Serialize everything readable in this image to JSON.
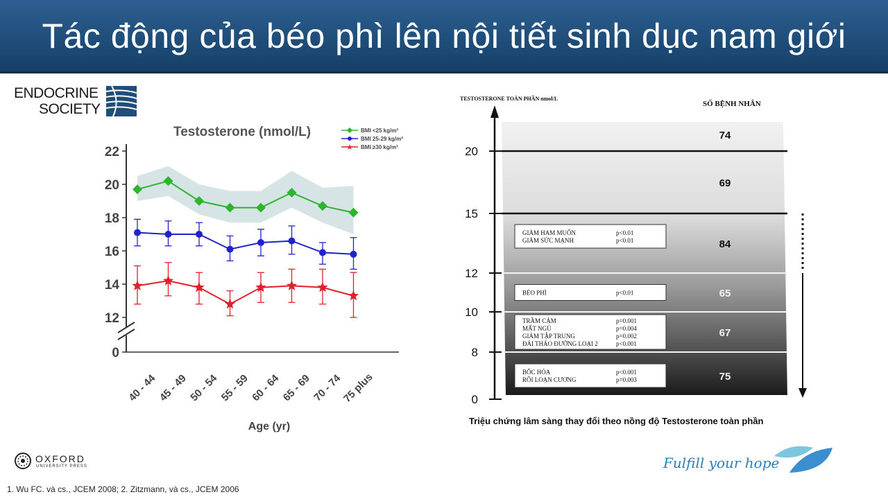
{
  "slide": {
    "title": "Tác động của béo phì lên nội tiết sinh dục nam giới",
    "endocrine_logo_line1": "ENDOCRINE",
    "endocrine_logo_line2": "SOCIETY",
    "oxford_name": "OXFORD",
    "oxford_sub": "UNIVERSITY PRESS",
    "reference": "1. Wu FC. và cs., JCEM 2008;  2. Zitzmann, và cs., JCEM 2006",
    "hope_text": "Fulfill your hope",
    "caption": "Triệu chứng lâm sàng thay đổi theo nồng độ Testosterone toàn phần"
  },
  "colors": {
    "title_bg": "#1f4e7a",
    "green": "#2db52d",
    "blue": "#1f23c8",
    "red": "#e0202a",
    "band": "#cfdfe0"
  },
  "chart_data": [
    {
      "type": "line",
      "title": "Testosterone (nmol/L)",
      "xlabel": "Age (yr)",
      "ylabel": "",
      "categories": [
        "40 - 44",
        "45 - 49",
        "50 - 54",
        "55 - 59",
        "60 - 64",
        "65 - 69",
        "70 - 74",
        "75 plus"
      ],
      "ylim": [
        12,
        22
      ],
      "yticks": [
        "22",
        "20",
        "18",
        "16",
        "14",
        "12",
        "0"
      ],
      "axis_break": true,
      "legend_position": "top-right",
      "series": [
        {
          "name": "BMI <25 kg/m²",
          "color": "#2db52d",
          "marker": "diamond",
          "values": [
            19.7,
            20.2,
            19.0,
            18.6,
            18.6,
            19.5,
            18.7,
            18.3
          ],
          "band_low": [
            19.0,
            19.3,
            18.2,
            17.7,
            17.7,
            18.6,
            17.7,
            17.0
          ],
          "band_high": [
            20.5,
            21.1,
            20.0,
            19.6,
            19.6,
            20.8,
            19.8,
            19.9
          ]
        },
        {
          "name": "BMI 25-29 kg/m²",
          "color": "#1f23c8",
          "marker": "circle",
          "values": [
            17.1,
            17.0,
            17.0,
            16.1,
            16.5,
            16.6,
            15.9,
            15.8
          ],
          "err_low": [
            16.3,
            16.3,
            16.3,
            15.4,
            15.7,
            15.8,
            15.2,
            14.9
          ],
          "err_high": [
            17.9,
            17.8,
            17.7,
            16.9,
            17.3,
            17.5,
            16.5,
            16.8
          ]
        },
        {
          "name": "BMI ≥30 kg/m²",
          "color": "#e0202a",
          "marker": "star",
          "values": [
            13.9,
            14.2,
            13.8,
            12.8,
            13.8,
            13.9,
            13.8,
            13.3
          ],
          "err_low": [
            12.8,
            13.3,
            12.8,
            12.1,
            12.9,
            12.9,
            12.8,
            12.0
          ],
          "err_high": [
            15.1,
            15.3,
            14.7,
            13.6,
            14.7,
            14.9,
            14.9,
            14.7
          ]
        }
      ]
    },
    {
      "type": "table",
      "title": "TESTOSTERONE TOÀN PHẦN nmol/L",
      "count_header": "SỐ BỆNH NHÂN",
      "yticks": [
        "20",
        "15",
        "12",
        "10",
        "8",
        "0"
      ],
      "rows": [
        {
          "count": "74",
          "items": []
        },
        {
          "count": "69",
          "items": []
        },
        {
          "count": "84",
          "items": [
            {
              "label": "GIẢM HAM MUỐN",
              "p": "p<0.01"
            },
            {
              "label": "GIẢM SỨC MẠNH",
              "p": "p<0.01"
            }
          ]
        },
        {
          "count": "65",
          "items": [
            {
              "label": "BÉO PHÌ",
              "p": "p<0.01"
            }
          ]
        },
        {
          "count": "67",
          "items": [
            {
              "label": "TRẦM CẢM",
              "p": "p=0.001"
            },
            {
              "label": "MẤT NGỦ",
              "p": "p=0.004"
            },
            {
              "label": "GIẢM TẬP TRUNG",
              "p": "p=0.002"
            },
            {
              "label": "ĐÁI THÁO ĐƯỜNG LOẠI 2",
              "p": "p<0.001"
            }
          ]
        },
        {
          "count": "75",
          "items": [
            {
              "label": "BỐC HỎA",
              "p": "p<0.001"
            },
            {
              "label": "RỐI LOẠN CƯƠNG",
              "p": "p=0.003"
            }
          ]
        }
      ]
    }
  ]
}
